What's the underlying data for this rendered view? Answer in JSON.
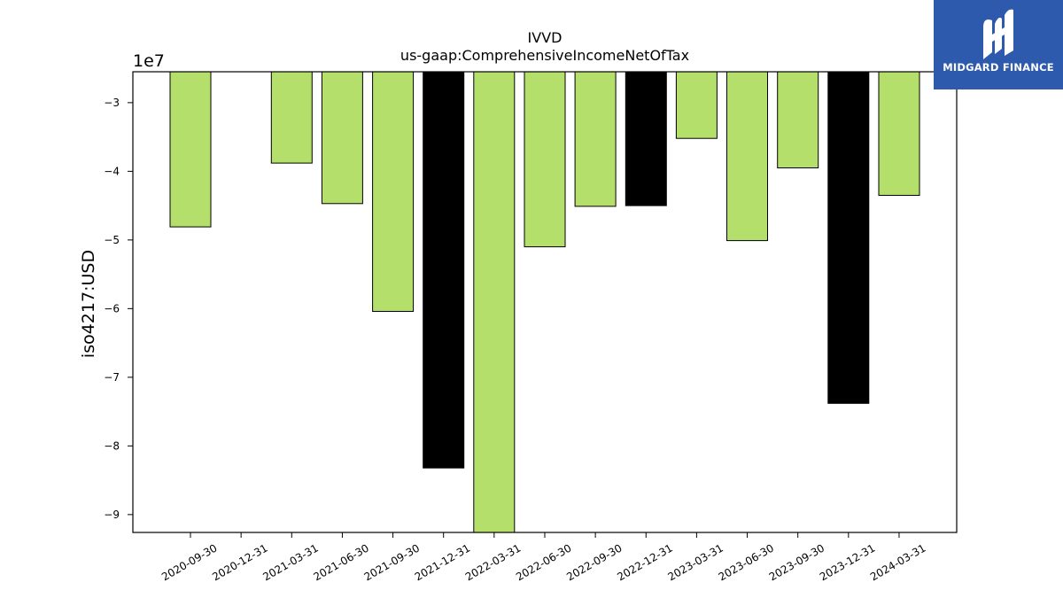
{
  "chart_data": {
    "type": "bar",
    "title": "IVVD",
    "subtitle": "us-gaap:ComprehensiveIncomeNetOfTax",
    "xlabel": "",
    "ylabel": "iso4217:USD",
    "y_scale_label": "1e7",
    "ylim": [
      -9.26,
      -2.55
    ],
    "y_ticks": [
      -3,
      -4,
      -5,
      -6,
      -7,
      -8,
      -9
    ],
    "categories": [
      "2020-09-30",
      "2020-12-31",
      "2021-03-31",
      "2021-06-30",
      "2021-09-30",
      "2021-12-31",
      "2022-03-31",
      "2022-06-30",
      "2022-09-30",
      "2022-12-31",
      "2023-03-31",
      "2023-06-30",
      "2023-09-30",
      "2023-12-31",
      "2024-03-31"
    ],
    "values": [
      -4.81,
      null,
      -3.88,
      -4.47,
      -6.04,
      -8.32,
      -9.26,
      -5.1,
      -4.51,
      -4.5,
      -3.52,
      -5.01,
      -3.95,
      -7.38,
      -4.35
    ],
    "bar_colors": [
      "#b5df6b",
      null,
      "#b5df6b",
      "#b5df6b",
      "#b5df6b",
      "#000000",
      "#b5df6b",
      "#b5df6b",
      "#b5df6b",
      "#000000",
      "#b5df6b",
      "#b5df6b",
      "#b5df6b",
      "#000000",
      "#b5df6b"
    ],
    "grid": false,
    "legend": null
  },
  "logo": {
    "text": "MIDGARD FINANCE",
    "background": "#2d5aad",
    "icon": "midgard-m-logo"
  },
  "colors": {
    "bar_green": "#b5df6b",
    "bar_black": "#000000",
    "axis": "#000000"
  }
}
